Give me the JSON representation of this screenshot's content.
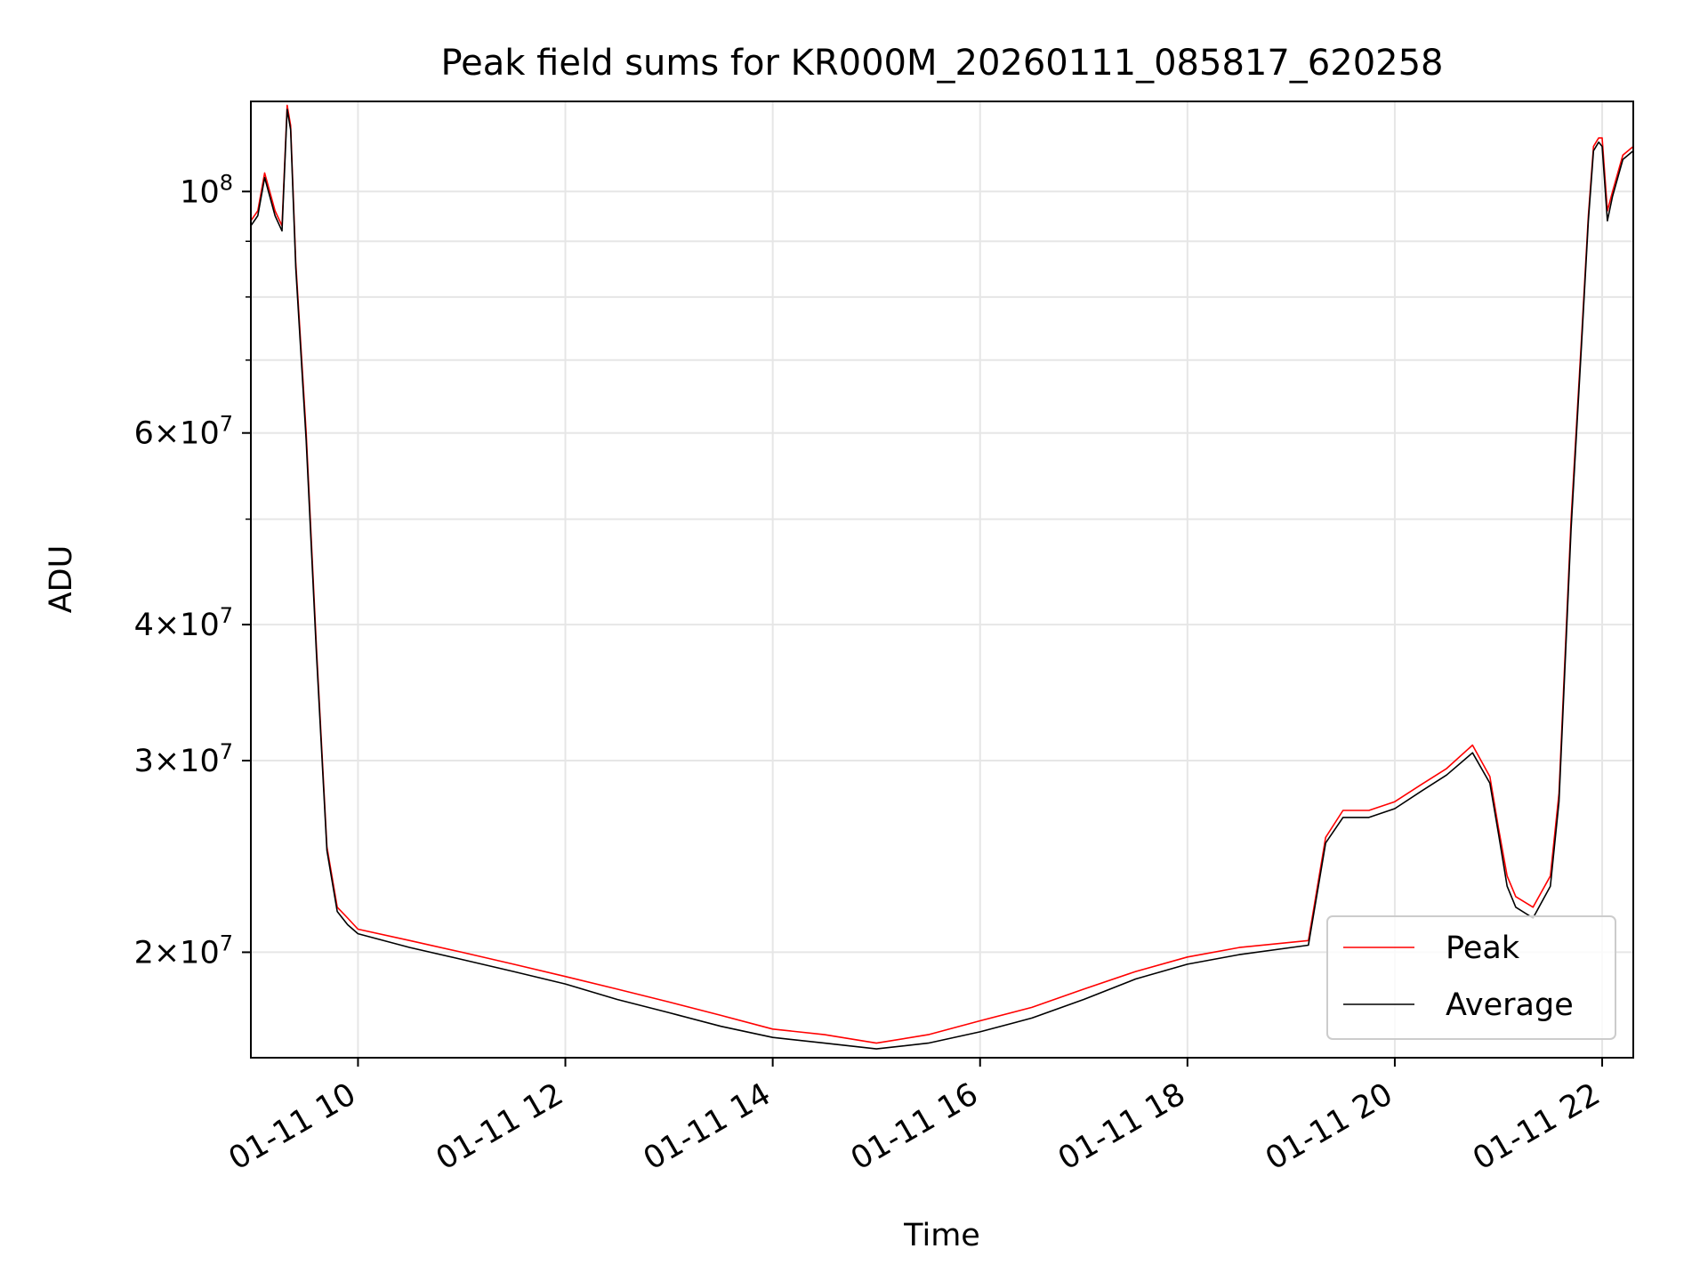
{
  "chart_data": {
    "type": "line",
    "title": "Peak field sums for KR000M_20260111_085817_620258",
    "xlabel": "Time",
    "ylabel": "ADU",
    "y_scale": "log",
    "xlim": [
      "2026-01-11 08:58",
      "2026-01-11 22:18"
    ],
    "ylim": [
      16000000,
      121000000
    ],
    "grid": true,
    "legend_position": "lower right",
    "x_ticks": [
      "01-11 10",
      "01-11 12",
      "01-11 14",
      "01-11 16",
      "01-11 18",
      "01-11 20",
      "01-11 22"
    ],
    "x_tick_times": [
      "2026-01-11 10:00",
      "2026-01-11 12:00",
      "2026-01-11 14:00",
      "2026-01-11 16:00",
      "2026-01-11 18:00",
      "2026-01-11 20:00",
      "2026-01-11 22:00"
    ],
    "y_ticks": [
      {
        "value": 20000000,
        "mant": "2",
        "exp": "7"
      },
      {
        "value": 30000000,
        "mant": "3",
        "exp": "7"
      },
      {
        "value": 40000000,
        "mant": "4",
        "exp": "7"
      },
      {
        "value": 60000000,
        "mant": "6",
        "exp": "7"
      },
      {
        "value": 100000000,
        "mant": "",
        "exp": "8"
      }
    ],
    "y_minor_ticks": [
      50000000,
      70000000,
      80000000,
      90000000
    ],
    "series": [
      {
        "name": "Peak",
        "color": "#ff0000",
        "x": [
          "2026-01-11 08:58",
          "2026-01-11 09:02",
          "2026-01-11 09:06",
          "2026-01-11 09:12",
          "2026-01-11 09:16",
          "2026-01-11 09:19",
          "2026-01-11 09:21",
          "2026-01-11 09:24",
          "2026-01-11 09:30",
          "2026-01-11 09:36",
          "2026-01-11 09:42",
          "2026-01-11 09:48",
          "2026-01-11 09:54",
          "2026-01-11 10:00",
          "2026-01-11 10:30",
          "2026-01-11 11:00",
          "2026-01-11 11:30",
          "2026-01-11 12:00",
          "2026-01-11 12:30",
          "2026-01-11 13:00",
          "2026-01-11 13:30",
          "2026-01-11 14:00",
          "2026-01-11 14:30",
          "2026-01-11 15:00",
          "2026-01-11 15:30",
          "2026-01-11 16:00",
          "2026-01-11 16:30",
          "2026-01-11 17:00",
          "2026-01-11 17:30",
          "2026-01-11 18:00",
          "2026-01-11 18:30",
          "2026-01-11 19:10",
          "2026-01-11 19:20",
          "2026-01-11 19:30",
          "2026-01-11 19:45",
          "2026-01-11 20:00",
          "2026-01-11 20:15",
          "2026-01-11 20:30",
          "2026-01-11 20:45",
          "2026-01-11 20:55",
          "2026-01-11 21:00",
          "2026-01-11 21:05",
          "2026-01-11 21:10",
          "2026-01-11 21:20",
          "2026-01-11 21:30",
          "2026-01-11 21:35",
          "2026-01-11 21:42",
          "2026-01-11 21:48",
          "2026-01-11 21:52",
          "2026-01-11 21:55",
          "2026-01-11 21:58",
          "2026-01-11 22:00",
          "2026-01-11 22:03",
          "2026-01-11 22:06",
          "2026-01-11 22:12",
          "2026-01-11 22:18"
        ],
        "y": [
          94000000,
          96000000,
          104000000,
          96000000,
          93000000,
          120000000,
          115000000,
          86000000,
          60000000,
          38000000,
          25000000,
          22000000,
          21500000,
          21000000,
          20500000,
          20000000,
          19500000,
          19000000,
          18500000,
          18000000,
          17500000,
          17000000,
          16800000,
          16500000,
          16800000,
          17300000,
          17800000,
          18500000,
          19200000,
          19800000,
          20200000,
          20500000,
          25500000,
          27000000,
          27000000,
          27500000,
          28500000,
          29500000,
          31000000,
          29000000,
          26000000,
          23500000,
          22500000,
          22000000,
          23500000,
          28000000,
          50000000,
          73000000,
          95000000,
          110000000,
          112000000,
          112000000,
          96000000,
          100000000,
          108000000,
          110000000
        ]
      },
      {
        "name": "Average",
        "color": "#000000",
        "x": [
          "2026-01-11 08:58",
          "2026-01-11 09:02",
          "2026-01-11 09:06",
          "2026-01-11 09:12",
          "2026-01-11 09:16",
          "2026-01-11 09:19",
          "2026-01-11 09:21",
          "2026-01-11 09:24",
          "2026-01-11 09:30",
          "2026-01-11 09:36",
          "2026-01-11 09:42",
          "2026-01-11 09:48",
          "2026-01-11 09:54",
          "2026-01-11 10:00",
          "2026-01-11 10:30",
          "2026-01-11 11:00",
          "2026-01-11 11:30",
          "2026-01-11 12:00",
          "2026-01-11 12:30",
          "2026-01-11 13:00",
          "2026-01-11 13:30",
          "2026-01-11 14:00",
          "2026-01-11 14:30",
          "2026-01-11 15:00",
          "2026-01-11 15:30",
          "2026-01-11 16:00",
          "2026-01-11 16:30",
          "2026-01-11 17:00",
          "2026-01-11 17:30",
          "2026-01-11 18:00",
          "2026-01-11 18:30",
          "2026-01-11 19:10",
          "2026-01-11 19:20",
          "2026-01-11 19:30",
          "2026-01-11 19:45",
          "2026-01-11 20:00",
          "2026-01-11 20:15",
          "2026-01-11 20:30",
          "2026-01-11 20:45",
          "2026-01-11 20:55",
          "2026-01-11 21:00",
          "2026-01-11 21:05",
          "2026-01-11 21:10",
          "2026-01-11 21:20",
          "2026-01-11 21:30",
          "2026-01-11 21:35",
          "2026-01-11 21:42",
          "2026-01-11 21:48",
          "2026-01-11 21:52",
          "2026-01-11 21:55",
          "2026-01-11 21:58",
          "2026-01-11 22:00",
          "2026-01-11 22:03",
          "2026-01-11 22:06",
          "2026-01-11 22:12",
          "2026-01-11 22:18"
        ],
        "y": [
          93000000,
          95000000,
          103000000,
          95000000,
          92000000,
          119000000,
          114000000,
          85000000,
          59000000,
          37500000,
          24800000,
          21800000,
          21200000,
          20800000,
          20200000,
          19700000,
          19200000,
          18700000,
          18100000,
          17600000,
          17100000,
          16700000,
          16500000,
          16300000,
          16500000,
          16900000,
          17400000,
          18100000,
          18900000,
          19500000,
          19900000,
          20300000,
          25200000,
          26600000,
          26600000,
          27100000,
          28100000,
          29100000,
          30500000,
          28600000,
          25700000,
          23000000,
          22000000,
          21500000,
          23000000,
          27500000,
          49000000,
          72000000,
          94000000,
          109000000,
          111000000,
          110000000,
          94000000,
          99000000,
          107000000,
          109000000
        ]
      }
    ]
  }
}
